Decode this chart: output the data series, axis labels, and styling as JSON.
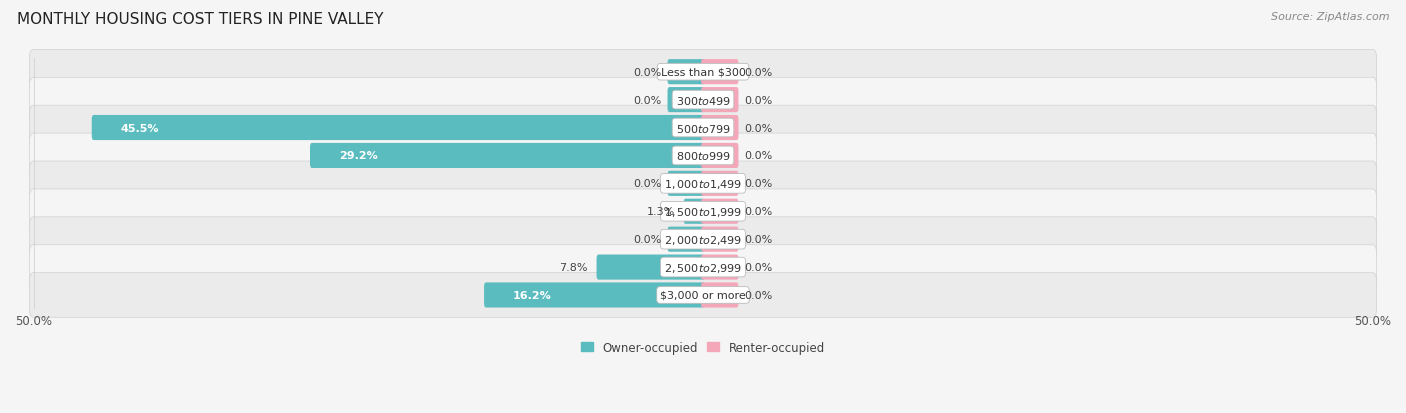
{
  "title": "MONTHLY HOUSING COST TIERS IN PINE VALLEY",
  "source": "Source: ZipAtlas.com",
  "categories": [
    "Less than $300",
    "$300 to $499",
    "$500 to $799",
    "$800 to $999",
    "$1,000 to $1,499",
    "$1,500 to $1,999",
    "$2,000 to $2,499",
    "$2,500 to $2,999",
    "$3,000 or more"
  ],
  "owner_values": [
    0.0,
    0.0,
    45.5,
    29.2,
    0.0,
    1.3,
    0.0,
    7.8,
    16.2
  ],
  "renter_values": [
    0.0,
    0.0,
    0.0,
    0.0,
    0.0,
    0.0,
    0.0,
    0.0,
    0.0
  ],
  "owner_color": "#5bbcbf",
  "renter_color": "#f4a7b9",
  "stub_size": 2.5,
  "x_min": -50.0,
  "x_max": 50.0,
  "legend_labels": [
    "Owner-occupied",
    "Renter-occupied"
  ],
  "title_fontsize": 11,
  "source_fontsize": 8,
  "label_fontsize": 8,
  "value_fontsize": 8,
  "axis_fontsize": 8.5,
  "legend_fontsize": 8.5,
  "bar_height": 0.6,
  "row_colors": [
    "#ebebeb",
    "#f5f5f5"
  ]
}
